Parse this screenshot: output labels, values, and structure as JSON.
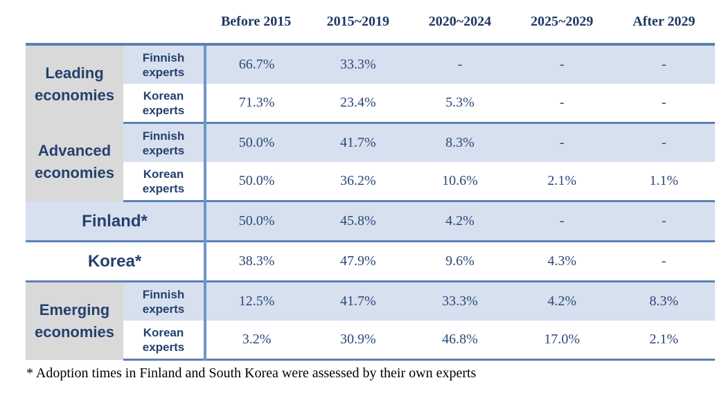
{
  "table": {
    "columns": [
      "Before 2015",
      "2015~2019",
      "2020~2024",
      "2025~2029",
      "After 2029"
    ],
    "groups": [
      {
        "label": "Leading economies",
        "rows": [
          {
            "label": "Finnish experts",
            "cells": [
              "66.7%",
              "33.3%",
              "-",
              "-",
              "-"
            ]
          },
          {
            "label": "Korean experts",
            "cells": [
              "71.3%",
              "23.4%",
              "5.3%",
              "-",
              "-"
            ]
          }
        ]
      },
      {
        "label": "Advanced economies",
        "rows": [
          {
            "label": "Finnish experts",
            "cells": [
              "50.0%",
              "41.7%",
              "8.3%",
              "-",
              "-"
            ]
          },
          {
            "label": "Korean experts",
            "cells": [
              "50.0%",
              "36.2%",
              "10.6%",
              "2.1%",
              "1.1%"
            ]
          }
        ]
      },
      {
        "label": "Finland*",
        "cells": [
          "50.0%",
          "45.8%",
          "4.2%",
          "-",
          "-"
        ]
      },
      {
        "label": "Korea*",
        "cells": [
          "38.3%",
          "47.9%",
          "9.6%",
          "4.3%",
          "-"
        ]
      },
      {
        "label": "Emerging economies",
        "rows": [
          {
            "label": "Finnish experts",
            "cells": [
              "12.5%",
              "41.7%",
              "33.3%",
              "4.2%",
              "8.3%"
            ]
          },
          {
            "label": "Korean experts",
            "cells": [
              "3.2%",
              "30.9%",
              "46.8%",
              "17.0%",
              "2.1%"
            ]
          }
        ]
      }
    ],
    "footnote": "* Adoption times in Finland and South Korea were assessed by their own experts"
  }
}
